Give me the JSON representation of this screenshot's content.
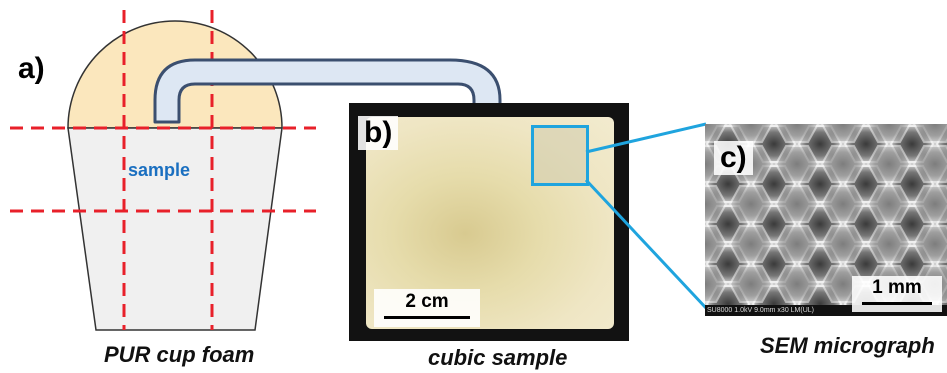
{
  "panel_a": {
    "letter": "a)",
    "sample_label": "sample",
    "caption": "PUR cup foam",
    "colors": {
      "cap_fill": "#fbe7bd",
      "body_fill": "#f0f0f0",
      "cut_lines": "#e8202a"
    }
  },
  "panel_b": {
    "letter": "b)",
    "scale_label": "2 cm",
    "caption": "cubic sample"
  },
  "panel_c": {
    "letter": "c)",
    "scale_label": "1 mm",
    "info_bar": "SU8000 1.0kV 9.0mm x30 LM(UL)",
    "caption": "SEM micrograph"
  },
  "arrow": {
    "fill": "#dde7f3",
    "stroke": "#3b4f6f"
  },
  "highlight_color": "#1fa4de"
}
